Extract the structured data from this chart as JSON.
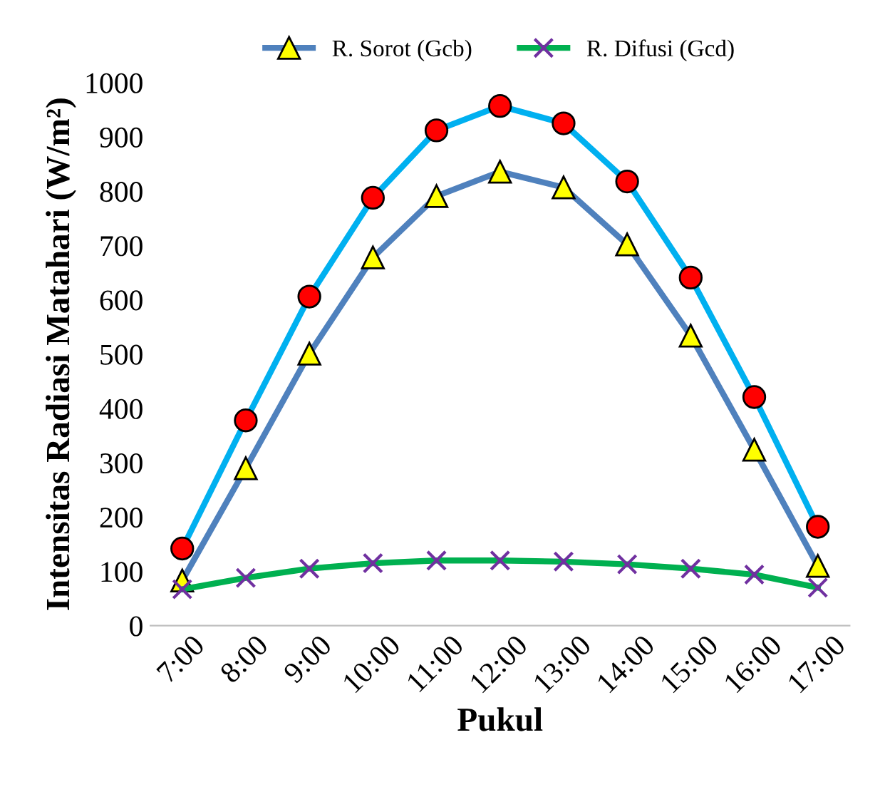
{
  "chart_data": {
    "type": "line",
    "xlabel": "Pukul",
    "ylabel": "Intensitas Radiasi Matahari (W/m²)",
    "categories": [
      "7:00",
      "8:00",
      "9:00",
      "10:00",
      "11:00",
      "12:00",
      "13:00",
      "14:00",
      "15:00",
      "16:00",
      "17:00"
    ],
    "ylim": [
      0,
      1000
    ],
    "yticks": [
      0,
      100,
      200,
      300,
      400,
      500,
      600,
      700,
      800,
      900,
      1000
    ],
    "grid": false,
    "legend": "top",
    "series": [
      {
        "name": "R. Sorot (Gcb)",
        "color": "#4f81bd",
        "marker": "triangle",
        "values": [
          83,
          290,
          501,
          678,
          791,
          836,
          807,
          702,
          534,
          324,
          110
        ]
      },
      {
        "name": "R. Difusi (Gcd)",
        "color": "#00b050",
        "marker": "cross",
        "values": [
          67,
          88,
          105,
          115,
          120,
          120,
          118,
          113,
          105,
          94,
          70
        ]
      },
      {
        "color": "#00b0f0",
        "marker": "circle",
        "values": [
          142,
          378,
          606,
          788,
          912,
          957,
          925,
          818,
          641,
          421,
          182
        ]
      }
    ]
  }
}
